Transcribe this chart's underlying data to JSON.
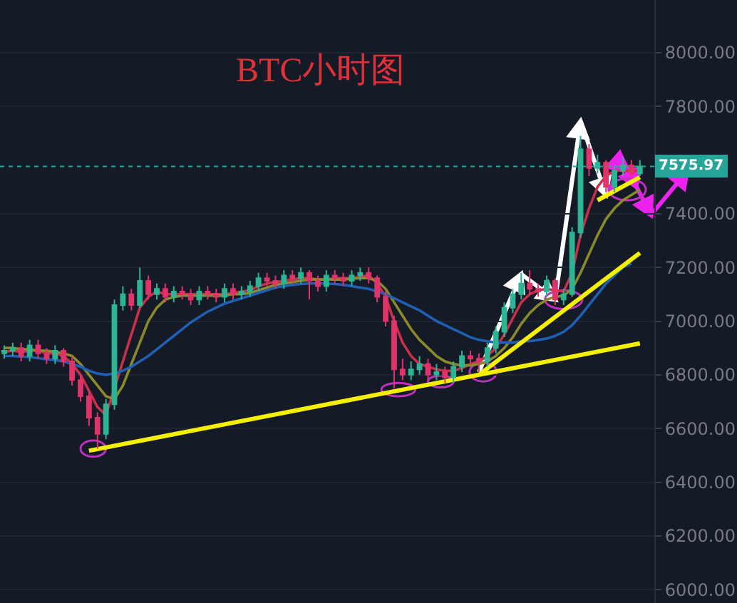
{
  "chart_data": {
    "type": "candlestick",
    "title": "BTC小时图",
    "categories": [
      null,
      null,
      null,
      null,
      null,
      null,
      null,
      null,
      null,
      null,
      null,
      null,
      null,
      null,
      null,
      null,
      null,
      null,
      null,
      null,
      null,
      null,
      null,
      null,
      null,
      null,
      null,
      null,
      null,
      null,
      null,
      null,
      null,
      null,
      null,
      null,
      null,
      null,
      null,
      null,
      null,
      null,
      null,
      null,
      null,
      null,
      null,
      null,
      null,
      null,
      null,
      null,
      null,
      null,
      null,
      null,
      null,
      null,
      null,
      null,
      null,
      null,
      null,
      null,
      null,
      null,
      null,
      null,
      null,
      null,
      null,
      null,
      null,
      null,
      null,
      null
    ],
    "ohlc": [
      [
        6880,
        6910,
        6860,
        6890
      ],
      [
        6890,
        6920,
        6870,
        6900
      ],
      [
        6900,
        6920,
        6850,
        6870
      ],
      [
        6870,
        6930,
        6850,
        6910
      ],
      [
        6910,
        6930,
        6860,
        6880
      ],
      [
        6880,
        6900,
        6840,
        6860
      ],
      [
        6860,
        6910,
        6840,
        6890
      ],
      [
        6890,
        6900,
        6830,
        6850
      ],
      [
        6850,
        6870,
        6760,
        6780
      ],
      [
        6780,
        6800,
        6700,
        6720
      ],
      [
        6720,
        6740,
        6610,
        6640
      ],
      [
        6640,
        6660,
        6525,
        6580
      ],
      [
        6580,
        6710,
        6560,
        6690
      ],
      [
        6690,
        7080,
        6670,
        7060
      ],
      [
        7060,
        7130,
        7040,
        7100
      ],
      [
        7100,
        7120,
        7040,
        7060
      ],
      [
        7060,
        7200,
        7050,
        7150
      ],
      [
        7150,
        7170,
        7080,
        7100
      ],
      [
        7100,
        7140,
        7080,
        7120
      ],
      [
        7120,
        7140,
        7070,
        7090
      ],
      [
        7090,
        7130,
        7070,
        7110
      ],
      [
        7110,
        7130,
        7080,
        7100
      ],
      [
        7100,
        7120,
        7060,
        7080
      ],
      [
        7080,
        7130,
        7060,
        7110
      ],
      [
        7110,
        7130,
        7080,
        7100
      ],
      [
        7100,
        7120,
        7070,
        7090
      ],
      [
        7090,
        7140,
        7070,
        7120
      ],
      [
        7120,
        7140,
        7080,
        7100
      ],
      [
        7100,
        7130,
        7080,
        7110
      ],
      [
        7110,
        7150,
        7090,
        7130
      ],
      [
        7130,
        7180,
        7110,
        7160
      ],
      [
        7160,
        7180,
        7130,
        7150
      ],
      [
        7150,
        7170,
        7120,
        7140
      ],
      [
        7140,
        7190,
        7120,
        7170
      ],
      [
        7170,
        7190,
        7140,
        7160
      ],
      [
        7160,
        7200,
        7140,
        7180
      ],
      [
        7180,
        7190,
        7080,
        7150
      ],
      [
        7150,
        7170,
        7110,
        7130
      ],
      [
        7130,
        7190,
        7110,
        7170
      ],
      [
        7170,
        7190,
        7140,
        7160
      ],
      [
        7160,
        7180,
        7130,
        7150
      ],
      [
        7150,
        7190,
        7130,
        7170
      ],
      [
        7170,
        7200,
        7150,
        7180
      ],
      [
        7180,
        7200,
        7140,
        7160
      ],
      [
        7160,
        7170,
        7070,
        7090
      ],
      [
        7090,
        7110,
        6980,
        7000
      ],
      [
        7000,
        7020,
        6750,
        6820
      ],
      [
        6820,
        6860,
        6780,
        6800
      ],
      [
        6800,
        6850,
        6780,
        6820
      ],
      [
        6820,
        6870,
        6800,
        6840
      ],
      [
        6840,
        6860,
        6780,
        6800
      ],
      [
        6800,
        6840,
        6780,
        6810
      ],
      [
        6810,
        6830,
        6770,
        6790
      ],
      [
        6790,
        6850,
        6770,
        6830
      ],
      [
        6830,
        6890,
        6810,
        6870
      ],
      [
        6870,
        6890,
        6840,
        6860
      ],
      [
        6860,
        6880,
        6810,
        6850
      ],
      [
        6850,
        6920,
        6830,
        6900
      ],
      [
        6900,
        6980,
        6880,
        6960
      ],
      [
        6960,
        7070,
        6940,
        7050
      ],
      [
        7050,
        7120,
        7030,
        7100
      ],
      [
        7100,
        7180,
        7080,
        7140
      ],
      [
        7140,
        7190,
        7100,
        7120
      ],
      [
        7120,
        7140,
        7090,
        7110
      ],
      [
        7110,
        7170,
        7090,
        7150
      ],
      [
        7150,
        7160,
        7060,
        7080
      ],
      [
        7080,
        7120,
        7060,
        7100
      ],
      [
        7100,
        7350,
        7090,
        7330
      ],
      [
        7330,
        7690,
        7310,
        7640
      ],
      [
        7640,
        7660,
        7540,
        7570
      ],
      [
        7570,
        7620,
        7550,
        7590
      ],
      [
        7590,
        7600,
        7480,
        7500
      ],
      [
        7500,
        7580,
        7480,
        7560
      ],
      [
        7560,
        7610,
        7540,
        7580
      ],
      [
        7580,
        7600,
        7530,
        7550
      ],
      [
        7550,
        7600,
        7540,
        7576
      ]
    ],
    "colors": [
      "#2bb594",
      "#2bb594",
      "#e0336a",
      "#2bb594",
      "#e0336a",
      "#e0336a",
      "#2bb594",
      "#e0336a",
      "#e0336a",
      "#e0336a",
      "#e0336a",
      "#e0336a",
      "#2bb594",
      "#2bb594",
      "#2bb594",
      "#e0336a",
      "#2bb594",
      "#e0336a",
      "#2bb594",
      "#e0336a",
      "#2bb594",
      "#e0336a",
      "#e0336a",
      "#2bb594",
      "#e0336a",
      "#e0336a",
      "#2bb594",
      "#e0336a",
      "#2bb594",
      "#2bb594",
      "#2bb594",
      "#e0336a",
      "#e0336a",
      "#2bb594",
      "#e0336a",
      "#2bb594",
      "#e0336a",
      "#e0336a",
      "#2bb594",
      "#e0336a",
      "#e0336a",
      "#2bb594",
      "#2bb594",
      "#e0336a",
      "#e0336a",
      "#e0336a",
      "#e0336a",
      "#e0336a",
      "#2bb594",
      "#2bb594",
      "#e0336a",
      "#2bb594",
      "#e0336a",
      "#2bb594",
      "#2bb594",
      "#e0336a",
      "#e0336a",
      "#2bb594",
      "#2bb594",
      "#2bb594",
      "#2bb594",
      "#2bb594",
      "#e0336a",
      "#e0336a",
      "#2bb594",
      "#e0336a",
      "#2bb594",
      "#2bb594",
      "#2bb594",
      "#e0336a",
      "#2bb594",
      "#e0336a",
      "#2bb594",
      "#2bb594",
      "#e0336a",
      "#2bb594"
    ],
    "series": [
      {
        "type": "line",
        "color": "#c8304a",
        "values": [
          6885,
          6890,
          6885,
          6890,
          6890,
          6880,
          6880,
          6870,
          6840,
          6800,
          6740,
          6680,
          6650,
          null,
          6850,
          6950,
          7050,
          7090,
          7110,
          7100,
          7100,
          7100,
          7100,
          7100,
          7100,
          7100,
          7100,
          7105,
          7110,
          7115,
          7130,
          7140,
          7145,
          7150,
          7155,
          7160,
          7160,
          7155,
          7155,
          7160,
          7160,
          7160,
          7165,
          7170,
          7140,
          7090,
          7000,
          6920,
          6870,
          6840,
          6830,
          6820,
          6815,
          6815,
          6825,
          6840,
          6850,
          6870,
          6900,
          6950,
          7010,
          7070,
          7100,
          7115,
          7120,
          7115,
          7110,
          7180,
          7320,
          7420,
          7500,
          7540,
          7560,
          7560,
          7560,
          7560
        ]
      },
      {
        "type": "line",
        "color": "#8a8a2a",
        "values": [
          6900,
          6900,
          6895,
          6895,
          6890,
          6890,
          6885,
          6880,
          6870,
          6840,
          6800,
          6760,
          6720,
          6710,
          6760,
          6840,
          6920,
          7000,
          7050,
          7080,
          7090,
          7095,
          7095,
          7095,
          7095,
          7095,
          7095,
          7100,
          7100,
          7105,
          7115,
          7125,
          7135,
          7140,
          7145,
          7150,
          7155,
          7155,
          7155,
          7155,
          7155,
          7158,
          7160,
          7160,
          7150,
          7120,
          7070,
          7020,
          6970,
          6930,
          6900,
          6870,
          6850,
          6840,
          6835,
          6835,
          6840,
          6850,
          6870,
          6900,
          6940,
          6990,
          7030,
          7060,
          7080,
          7090,
          7095,
          7120,
          7180,
          7250,
          7320,
          7380,
          7420,
          7450,
          7470,
          7490
        ]
      },
      {
        "type": "line",
        "color": "#1f5fb4",
        "values": [
          6870,
          6870,
          6868,
          6866,
          6862,
          6858,
          6855,
          6850,
          6840,
          6830,
          6815,
          6805,
          6800,
          6805,
          6815,
          6830,
          6850,
          6870,
          6895,
          6920,
          6945,
          6970,
          6995,
          7015,
          7035,
          7050,
          7065,
          7075,
          7085,
          7095,
          7105,
          7115,
          7125,
          7130,
          7135,
          7138,
          7140,
          7140,
          7140,
          7138,
          7135,
          7130,
          7125,
          7120,
          7110,
          7100,
          7085,
          7070,
          7055,
          7040,
          7020,
          7000,
          6985,
          6970,
          6955,
          6940,
          6930,
          6925,
          6920,
          6920,
          6920,
          6925,
          6925,
          6930,
          6935,
          6945,
          6960,
          6985,
          7020,
          7060,
          7100,
          7140,
          7170,
          7200,
          7215,
          null
        ]
      },
      {
        "type": "line",
        "color": "#f5f000",
        "values": [
          null,
          null,
          null,
          null,
          null,
          null,
          null,
          null,
          null,
          null,
          6517,
          null,
          null,
          null,
          null,
          null,
          null,
          null,
          null,
          null,
          null,
          null,
          null,
          null,
          null,
          null,
          null,
          null,
          null,
          null,
          null,
          null,
          null,
          null,
          null,
          null,
          null,
          null,
          null,
          null,
          null,
          null,
          null,
          null,
          null,
          null,
          null,
          null,
          null,
          null,
          null,
          null,
          null,
          null,
          null,
          null,
          null,
          null,
          null,
          null,
          null,
          null,
          null,
          null,
          null,
          null,
          null,
          null,
          null,
          null,
          null,
          null,
          null,
          null,
          null,
          6917
        ]
      },
      {
        "type": "line",
        "color": "#f5f000",
        "values": [
          null,
          null,
          null,
          null,
          null,
          null,
          null,
          null,
          null,
          null,
          null,
          null,
          null,
          null,
          null,
          null,
          null,
          null,
          null,
          null,
          null,
          null,
          null,
          null,
          null,
          null,
          null,
          null,
          null,
          null,
          null,
          null,
          null,
          null,
          null,
          null,
          null,
          null,
          null,
          null,
          null,
          null,
          null,
          null,
          null,
          null,
          null,
          null,
          null,
          null,
          null,
          null,
          null,
          null,
          null,
          null,
          6800,
          null,
          null,
          null,
          null,
          null,
          null,
          null,
          null,
          null,
          null,
          null,
          null,
          null,
          null,
          null,
          null,
          null,
          null,
          7254
        ]
      },
      {
        "type": "line",
        "color": "#f5f000",
        "values": [
          null,
          null,
          null,
          null,
          null,
          null,
          null,
          null,
          null,
          null,
          null,
          null,
          null,
          null,
          null,
          null,
          null,
          null,
          null,
          null,
          null,
          null,
          null,
          null,
          null,
          null,
          null,
          null,
          null,
          null,
          null,
          null,
          null,
          null,
          null,
          null,
          null,
          null,
          null,
          null,
          null,
          null,
          null,
          null,
          null,
          null,
          null,
          null,
          null,
          null,
          null,
          null,
          null,
          null,
          null,
          null,
          null,
          null,
          null,
          null,
          null,
          null,
          null,
          null,
          null,
          null,
          null,
          null,
          null,
          null,
          7450,
          null,
          null,
          null,
          null,
          7536
        ]
      }
    ],
    "ylim": [
      5950,
      8196
    ],
    "yticks": [
      {
        "value": 6000,
        "label": "6000.00"
      },
      {
        "value": 6200,
        "label": "6200.00"
      },
      {
        "value": 6400,
        "label": "6400.00"
      },
      {
        "value": 6600,
        "label": "6600.00"
      },
      {
        "value": 6800,
        "label": "6800.00"
      },
      {
        "value": 7000,
        "label": "7000.00"
      },
      {
        "value": 7200,
        "label": "7200.00"
      },
      {
        "value": 7400,
        "label": "7400.00"
      },
      {
        "value": 7800,
        "label": "7800.00"
      },
      {
        "value": 8000,
        "label": "8000.00"
      }
    ],
    "ref_lines": [
      {
        "axis": "y",
        "value": 7575.97,
        "label": "7575.97",
        "color": "#26a69a",
        "line_style": "dotted"
      }
    ],
    "tick_labels": "y",
    "grid": "y"
  }
}
